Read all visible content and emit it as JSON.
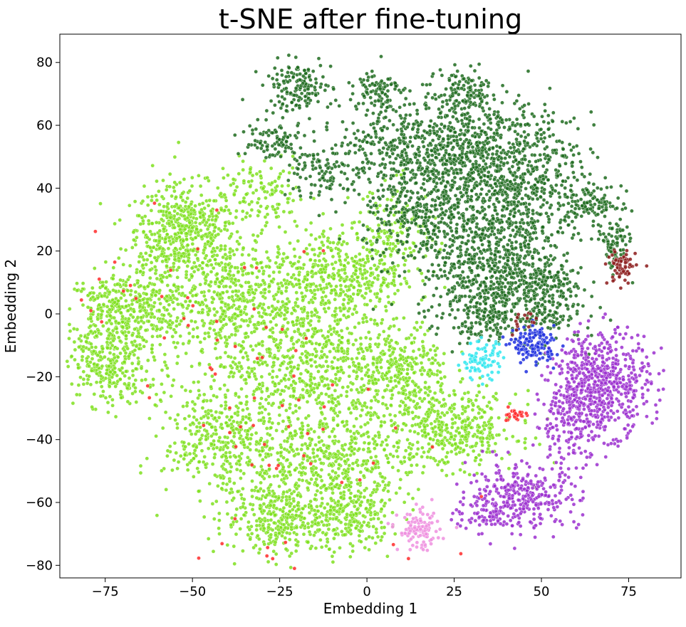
{
  "chart_data": {
    "type": "scatter",
    "title": "t-SNE after fine-tuning",
    "xlabel": "Embedding 1",
    "ylabel": "Embedding 2",
    "xlim": [
      -88,
      90
    ],
    "ylim": [
      -84,
      89
    ],
    "xticks": [
      -75,
      -50,
      -25,
      0,
      25,
      50,
      75
    ],
    "yticks": [
      -80,
      -60,
      -40,
      -20,
      0,
      20,
      40,
      60,
      80
    ],
    "xtick_labels": [
      "−75",
      "−50",
      "−25",
      "0",
      "25",
      "50",
      "75"
    ],
    "ytick_labels": [
      "−80",
      "−60",
      "−40",
      "−20",
      "0",
      "20",
      "40",
      "60",
      "80"
    ],
    "grid": false,
    "legend": "none",
    "series": [
      {
        "color": "#7fe01f",
        "clusters": [
          {
            "cx": -52,
            "cy": 27,
            "sx": 7,
            "sy": 7,
            "n": 420
          },
          {
            "cx": -72,
            "cy": 1,
            "sx": 7,
            "sy": 6,
            "n": 320
          },
          {
            "cx": -75,
            "cy": -17,
            "sx": 6,
            "sy": 6,
            "n": 260
          },
          {
            "cx": -38,
            "cy": 5,
            "sx": 11,
            "sy": 10,
            "n": 560
          },
          {
            "cx": -8,
            "cy": 12,
            "sx": 9,
            "sy": 8,
            "n": 380
          },
          {
            "cx": -18,
            "cy": -15,
            "sx": 12,
            "sy": 10,
            "n": 620
          },
          {
            "cx": 10,
            "cy": -20,
            "sx": 7,
            "sy": 9,
            "n": 340
          },
          {
            "cx": 25,
            "cy": -37,
            "sx": 9,
            "sy": 6,
            "n": 380
          },
          {
            "cx": -40,
            "cy": -40,
            "sx": 9,
            "sy": 9,
            "n": 420
          },
          {
            "cx": -10,
            "cy": -48,
            "sx": 11,
            "sy": 9,
            "n": 520
          },
          {
            "cx": -25,
            "cy": -65,
            "sx": 8,
            "sy": 6,
            "n": 300
          },
          {
            "cx": -5,
            "cy": -65,
            "sx": 6,
            "sy": 5,
            "n": 200
          },
          {
            "cx": -60,
            "cy": 5,
            "sx": 5,
            "sy": 15,
            "n": 220
          },
          {
            "cx": 8,
            "cy": 25,
            "sx": 6,
            "sy": 8,
            "n": 160
          },
          {
            "cx": -30,
            "cy": 38,
            "sx": 6,
            "sy": 5,
            "n": 120
          }
        ]
      },
      {
        "color": "#1f6b1f",
        "clusters": [
          {
            "cx": -20,
            "cy": 72,
            "sx": 5,
            "sy": 4,
            "n": 150
          },
          {
            "cx": 3,
            "cy": 72,
            "sx": 3,
            "sy": 3,
            "n": 80
          },
          {
            "cx": -28,
            "cy": 55,
            "sx": 5,
            "sy": 3,
            "n": 90
          },
          {
            "cx": -12,
            "cy": 45,
            "sx": 5,
            "sy": 5,
            "n": 110
          },
          {
            "cx": 30,
            "cy": 50,
            "sx": 11,
            "sy": 10,
            "n": 650
          },
          {
            "cx": 45,
            "cy": 38,
            "sx": 10,
            "sy": 11,
            "n": 500
          },
          {
            "cx": 35,
            "cy": 15,
            "sx": 10,
            "sy": 9,
            "n": 550
          },
          {
            "cx": 50,
            "cy": 5,
            "sx": 6,
            "sy": 7,
            "n": 250
          },
          {
            "cx": 10,
            "cy": 55,
            "sx": 9,
            "sy": 8,
            "n": 300
          },
          {
            "cx": 15,
            "cy": 30,
            "sx": 8,
            "sy": 7,
            "n": 260
          },
          {
            "cx": 34,
            "cy": 0,
            "sx": 5,
            "sy": 4,
            "n": 150
          },
          {
            "cx": 65,
            "cy": 35,
            "sx": 4,
            "sy": 3,
            "n": 90
          },
          {
            "cx": 71,
            "cy": 22,
            "sx": 2,
            "sy": 4,
            "n": 80
          },
          {
            "cx": 28,
            "cy": 70,
            "sx": 4,
            "sy": 4,
            "n": 110
          }
        ]
      },
      {
        "color": "#9b2fcf",
        "clusters": [
          {
            "cx": 67,
            "cy": -22,
            "sx": 7,
            "sy": 8,
            "n": 600
          },
          {
            "cx": 58,
            "cy": -35,
            "sx": 5,
            "sy": 6,
            "n": 160
          },
          {
            "cx": 45,
            "cy": -58,
            "sx": 8,
            "sy": 5,
            "n": 300
          },
          {
            "cx": 35,
            "cy": -63,
            "sx": 5,
            "sy": 3,
            "n": 80
          }
        ]
      },
      {
        "color": "#1f2fdf",
        "clusters": [
          {
            "cx": 48,
            "cy": -10,
            "sx": 3,
            "sy": 3,
            "n": 140
          }
        ]
      },
      {
        "color": "#2fe6ee",
        "clusters": [
          {
            "cx": 33,
            "cy": -15,
            "sx": 3,
            "sy": 3,
            "n": 90
          }
        ]
      },
      {
        "color": "#ef8fdf",
        "clusters": [
          {
            "cx": 15,
            "cy": -69,
            "sx": 3,
            "sy": 3,
            "n": 110
          }
        ]
      },
      {
        "color": "#8b1a1a",
        "clusters": [
          {
            "cx": 73,
            "cy": 15,
            "sx": 2,
            "sy": 3,
            "n": 70
          },
          {
            "cx": 45,
            "cy": -3,
            "sx": 2,
            "sy": 2,
            "n": 15
          }
        ]
      },
      {
        "color": "#ff2a2a",
        "clusters": [
          {
            "cx": 42,
            "cy": -32,
            "sx": 2,
            "sy": 1,
            "n": 25
          },
          {
            "cx": -20,
            "cy": -40,
            "sx": 25,
            "sy": 25,
            "n": 60
          },
          {
            "cx": -65,
            "cy": 10,
            "sx": 15,
            "sy": 15,
            "n": 25
          }
        ]
      }
    ]
  }
}
